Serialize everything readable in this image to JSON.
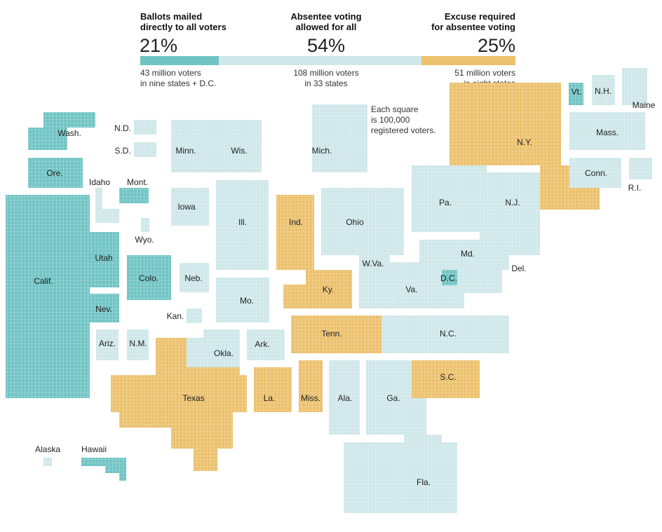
{
  "colors": {
    "mailed": "#71c4c4",
    "allowed": "#cfe7e9",
    "excuse": "#ecc16d",
    "legend_square": "#888888",
    "grid_line": "#ffffff"
  },
  "legend": {
    "mailed": {
      "heading": [
        "Ballots mailed",
        "directly to all voters"
      ],
      "percent": "21%",
      "detail": [
        "43 million voters",
        "in nine states + D.C."
      ],
      "share": 0.21
    },
    "allowed": {
      "heading": [
        "Absentee voting",
        "allowed for all"
      ],
      "percent": "54%",
      "detail": [
        "108 million voters",
        "in 33 states"
      ],
      "share": 0.54
    },
    "excuse": {
      "heading": [
        "Excuse required",
        "for absentee voting"
      ],
      "percent": "25%",
      "detail": [
        "51 million voters",
        "in eight states"
      ],
      "share": 0.25
    },
    "square_note": [
      "Each square",
      "is 100,000",
      "registered voters."
    ]
  },
  "map": {
    "states": [
      {
        "label": "Wash.",
        "category": "mailed"
      },
      {
        "label": "Ore.",
        "category": "mailed"
      },
      {
        "label": "Calif.",
        "category": "mailed"
      },
      {
        "label": "Idaho",
        "category": "allowed"
      },
      {
        "label": "Mont.",
        "category": "mailed"
      },
      {
        "label": "Wyo.",
        "category": "allowed"
      },
      {
        "label": "Utah",
        "category": "mailed"
      },
      {
        "label": "Nev.",
        "category": "mailed"
      },
      {
        "label": "Colo.",
        "category": "mailed"
      },
      {
        "label": "Ariz.",
        "category": "allowed"
      },
      {
        "label": "N.M.",
        "category": "allowed"
      },
      {
        "label": "N.D.",
        "category": "allowed"
      },
      {
        "label": "S.D.",
        "category": "allowed"
      },
      {
        "label": "Neb.",
        "category": "allowed"
      },
      {
        "label": "Kan.",
        "category": "allowed"
      },
      {
        "label": "Okla.",
        "category": "allowed"
      },
      {
        "label": "Texas",
        "category": "excuse"
      },
      {
        "label": "Minn.",
        "category": "allowed"
      },
      {
        "label": "Iowa",
        "category": "allowed"
      },
      {
        "label": "Mo.",
        "category": "allowed"
      },
      {
        "label": "Ark.",
        "category": "allowed"
      },
      {
        "label": "La.",
        "category": "excuse"
      },
      {
        "label": "Wis.",
        "category": "allowed"
      },
      {
        "label": "Ill.",
        "category": "allowed"
      },
      {
        "label": "Mich.",
        "category": "allowed"
      },
      {
        "label": "Ind.",
        "category": "excuse"
      },
      {
        "label": "Ohio",
        "category": "allowed"
      },
      {
        "label": "Ky.",
        "category": "excuse"
      },
      {
        "label": "Tenn.",
        "category": "excuse"
      },
      {
        "label": "Miss.",
        "category": "excuse"
      },
      {
        "label": "Ala.",
        "category": "allowed"
      },
      {
        "label": "Ga.",
        "category": "allowed"
      },
      {
        "label": "Fla.",
        "category": "allowed"
      },
      {
        "label": "S.C.",
        "category": "excuse"
      },
      {
        "label": "N.C.",
        "category": "allowed"
      },
      {
        "label": "Va.",
        "category": "allowed"
      },
      {
        "label": "W.Va.",
        "category": "allowed"
      },
      {
        "label": "Md.",
        "category": "allowed"
      },
      {
        "label": "D.C.",
        "category": "mailed"
      },
      {
        "label": "Del.",
        "category": "allowed"
      },
      {
        "label": "Pa.",
        "category": "allowed"
      },
      {
        "label": "N.J.",
        "category": "allowed"
      },
      {
        "label": "N.Y.",
        "category": "excuse"
      },
      {
        "label": "Conn.",
        "category": "allowed"
      },
      {
        "label": "R.I.",
        "category": "allowed"
      },
      {
        "label": "Mass.",
        "category": "allowed"
      },
      {
        "label": "Vt.",
        "category": "mailed"
      },
      {
        "label": "N.H.",
        "category": "allowed"
      },
      {
        "label": "Maine",
        "category": "allowed"
      },
      {
        "label": "Alaska",
        "category": "allowed"
      },
      {
        "label": "Hawaii",
        "category": "mailed"
      }
    ]
  }
}
